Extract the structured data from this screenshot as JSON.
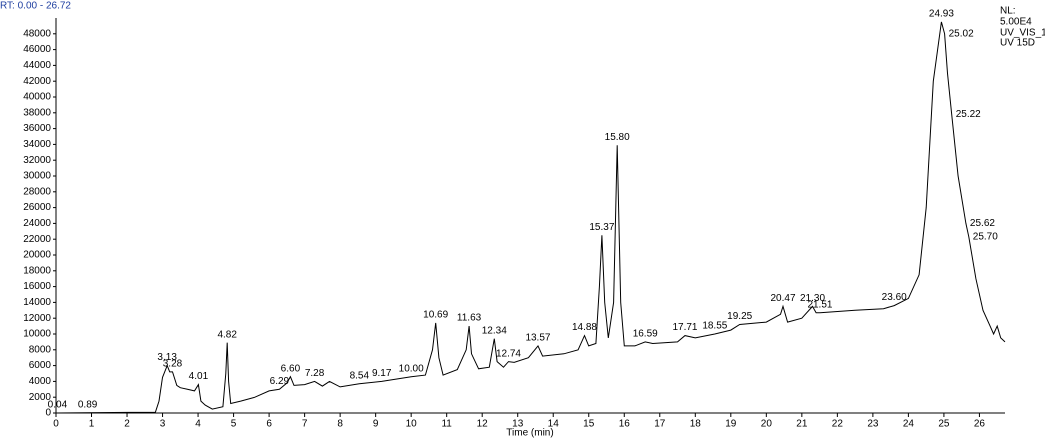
{
  "header": {
    "range": "RT: 0.00 - 26.72",
    "nl_label": "NL:",
    "nl_value": "5.00E4",
    "channel": "UV_VIS_1",
    "detector": "UV 15D"
  },
  "chart_data": {
    "type": "line",
    "x_label": "Time (min)",
    "color": "#000000",
    "xlim": [
      0,
      26.72
    ],
    "ylim": [
      0,
      50000
    ],
    "xticks": [
      0,
      1,
      2,
      3,
      4,
      5,
      6,
      7,
      8,
      9,
      10,
      11,
      12,
      13,
      14,
      15,
      16,
      17,
      18,
      19,
      20,
      21,
      22,
      23,
      24,
      25,
      26
    ],
    "yticks": [
      0,
      2000,
      4000,
      6000,
      8000,
      10000,
      12000,
      14000,
      16000,
      18000,
      20000,
      22000,
      24000,
      26000,
      28000,
      30000,
      32000,
      34000,
      36000,
      38000,
      40000,
      42000,
      44000,
      46000,
      48000
    ],
    "x": [
      0,
      2.8,
      2.9,
      3.0,
      3.13,
      3.2,
      3.28,
      3.4,
      3.5,
      3.7,
      3.9,
      4.01,
      4.08,
      4.2,
      4.4,
      4.7,
      4.78,
      4.82,
      4.86,
      4.92,
      5.2,
      5.6,
      6.0,
      6.29,
      6.5,
      6.6,
      6.7,
      7.0,
      7.28,
      7.5,
      7.7,
      8.0,
      8.54,
      9.17,
      10.0,
      10.4,
      10.6,
      10.69,
      10.78,
      10.9,
      11.3,
      11.55,
      11.63,
      11.7,
      11.9,
      12.2,
      12.34,
      12.42,
      12.6,
      12.74,
      12.9,
      13.3,
      13.57,
      13.7,
      14.3,
      14.7,
      14.88,
      15.0,
      15.2,
      15.3,
      15.37,
      15.45,
      15.55,
      15.7,
      15.8,
      15.9,
      16.0,
      16.3,
      16.59,
      16.8,
      17.5,
      17.71,
      18.0,
      18.55,
      19.0,
      19.25,
      20.0,
      20.4,
      20.47,
      20.6,
      21.0,
      21.3,
      21.4,
      21.51,
      22.5,
      23.3,
      23.6,
      24.0,
      24.3,
      24.5,
      24.7,
      24.93,
      25.02,
      25.1,
      25.22,
      25.4,
      25.62,
      25.7,
      25.9,
      26.1,
      26.3,
      26.4,
      26.5,
      26.6,
      26.72
    ],
    "y": [
      0,
      100,
      1500,
      4500,
      6000,
      5200,
      5200,
      3500,
      3200,
      3000,
      2800,
      3600,
      1500,
      1000,
      500,
      800,
      5000,
      8900,
      4000,
      1200,
      1500,
      2000,
      2800,
      3000,
      3800,
      4600,
      3500,
      3600,
      4000,
      3400,
      4000,
      3300,
      3700,
      4000,
      4600,
      4800,
      8000,
      11400,
      7000,
      4800,
      5500,
      8000,
      11000,
      7500,
      5600,
      5800,
      9400,
      6500,
      5800,
      6500,
      6400,
      7000,
      8500,
      7200,
      7500,
      8000,
      9800,
      8500,
      8800,
      16000,
      22500,
      14000,
      9500,
      14000,
      33900,
      14000,
      8500,
      8500,
      9000,
      8800,
      9000,
      9800,
      9500,
      10000,
      10500,
      11200,
      11500,
      12500,
      13500,
      11500,
      12000,
      13500,
      12700,
      12700,
      13000,
      13200,
      13600,
      14500,
      17500,
      26000,
      42000,
      49500,
      48000,
      43000,
      37800,
      30000,
      24000,
      22300,
      17000,
      13000,
      11000,
      10000,
      11000,
      9500,
      9000
    ],
    "peaks": [
      {
        "x": 0.04,
        "y": 0,
        "label": "0.04"
      },
      {
        "x": 0.89,
        "y": 0,
        "label": "0.89"
      },
      {
        "x": 3.13,
        "y": 6000,
        "label": "3.13"
      },
      {
        "x": 3.28,
        "y": 5200,
        "label": "3.28"
      },
      {
        "x": 4.01,
        "y": 3600,
        "label": "4.01"
      },
      {
        "x": 4.82,
        "y": 8900,
        "label": "4.82"
      },
      {
        "x": 6.29,
        "y": 3000,
        "label": "6.29"
      },
      {
        "x": 6.6,
        "y": 4600,
        "label": "6.60"
      },
      {
        "x": 7.28,
        "y": 4000,
        "label": "7.28"
      },
      {
        "x": 8.54,
        "y": 3700,
        "label": "8.54"
      },
      {
        "x": 9.17,
        "y": 4000,
        "label": "9.17"
      },
      {
        "x": 10.0,
        "y": 4600,
        "label": "10.00"
      },
      {
        "x": 10.69,
        "y": 11400,
        "label": "10.69"
      },
      {
        "x": 11.63,
        "y": 11000,
        "label": "11.63"
      },
      {
        "x": 12.34,
        "y": 9400,
        "label": "12.34"
      },
      {
        "x": 12.74,
        "y": 6500,
        "label": "12.74"
      },
      {
        "x": 13.57,
        "y": 8500,
        "label": "13.57"
      },
      {
        "x": 14.88,
        "y": 9800,
        "label": "14.88"
      },
      {
        "x": 15.37,
        "y": 22500,
        "label": "15.37"
      },
      {
        "x": 15.8,
        "y": 33900,
        "label": "15.80"
      },
      {
        "x": 16.59,
        "y": 9000,
        "label": "16.59"
      },
      {
        "x": 17.71,
        "y": 9800,
        "label": "17.71"
      },
      {
        "x": 18.55,
        "y": 10000,
        "label": "18.55"
      },
      {
        "x": 19.25,
        "y": 11200,
        "label": "19.25"
      },
      {
        "x": 20.47,
        "y": 13500,
        "label": "20.47"
      },
      {
        "x": 21.3,
        "y": 13500,
        "label": "21.30"
      },
      {
        "x": 21.51,
        "y": 12700,
        "label": "21.51"
      },
      {
        "x": 23.6,
        "y": 13600,
        "label": "23.60"
      },
      {
        "x": 24.93,
        "y": 49500,
        "label": "24.93"
      },
      {
        "x": 25.02,
        "y": 48000,
        "label": "25.02"
      },
      {
        "x": 25.22,
        "y": 37800,
        "label": "25.22"
      },
      {
        "x": 25.62,
        "y": 24000,
        "label": "25.62"
      },
      {
        "x": 25.7,
        "y": 22300,
        "label": "25.70"
      }
    ]
  }
}
